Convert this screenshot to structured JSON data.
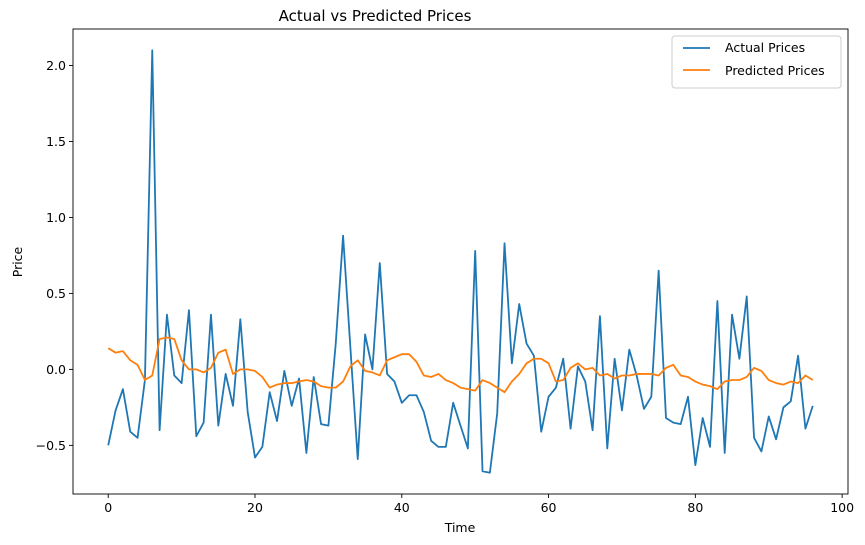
{
  "chart_data": {
    "type": "line",
    "title": "Actual vs Predicted Prices",
    "xlabel": "Time",
    "ylabel": "Price",
    "xlim": [
      -4.8,
      100.8
    ],
    "ylim": [
      -0.82,
      2.24
    ],
    "xticks": [
      0,
      20,
      40,
      60,
      80,
      100
    ],
    "yticks": [
      -0.5,
      0.0,
      0.5,
      1.0,
      1.5,
      2.0
    ],
    "ytick_labels": [
      "−0.5",
      "0.0",
      "0.5",
      "1.0",
      "1.5",
      "2.0"
    ],
    "grid": false,
    "legend_position": "top-right",
    "series": [
      {
        "name": "Actual Prices",
        "color": "#1f77b4",
        "values": [
          -0.5,
          -0.27,
          -0.13,
          -0.41,
          -0.45,
          -0.07,
          2.1,
          -0.4,
          0.36,
          -0.04,
          -0.09,
          0.39,
          -0.44,
          -0.35,
          0.36,
          -0.37,
          -0.03,
          -0.24,
          0.33,
          -0.28,
          -0.58,
          -0.51,
          -0.15,
          -0.34,
          -0.01,
          -0.24,
          -0.06,
          -0.55,
          -0.05,
          -0.36,
          -0.37,
          0.17,
          0.88,
          0.14,
          -0.59,
          0.23,
          0.0,
          0.7,
          -0.03,
          -0.08,
          -0.22,
          -0.17,
          -0.17,
          -0.28,
          -0.47,
          -0.51,
          -0.51,
          -0.22,
          -0.37,
          -0.52,
          0.78,
          -0.67,
          -0.68,
          -0.29,
          0.83,
          0.04,
          0.43,
          0.17,
          0.09,
          -0.41,
          -0.18,
          -0.12,
          0.07,
          -0.39,
          0.02,
          -0.08,
          -0.4,
          0.35,
          -0.52,
          0.07,
          -0.27,
          0.13,
          -0.04,
          -0.26,
          -0.18,
          0.65,
          -0.32,
          -0.35,
          -0.36,
          -0.18,
          -0.63,
          -0.32,
          -0.51,
          0.45,
          -0.55,
          0.36,
          0.07,
          0.48,
          -0.45,
          -0.54,
          -0.31,
          -0.46,
          -0.25,
          -0.21,
          0.09,
          -0.39,
          -0.24
        ]
      },
      {
        "name": "Predicted Prices",
        "color": "#ff7f0e",
        "values": [
          0.14,
          0.11,
          0.12,
          0.06,
          0.03,
          -0.07,
          -0.04,
          0.2,
          0.21,
          0.2,
          0.06,
          0.0,
          0.0,
          -0.02,
          0.01,
          0.11,
          0.13,
          -0.03,
          0.0,
          0.0,
          -0.01,
          -0.05,
          -0.12,
          -0.1,
          -0.09,
          -0.09,
          -0.08,
          -0.07,
          -0.08,
          -0.11,
          -0.12,
          -0.12,
          -0.08,
          0.02,
          0.06,
          -0.01,
          -0.02,
          -0.04,
          0.06,
          0.08,
          0.1,
          0.1,
          0.05,
          -0.04,
          -0.05,
          -0.03,
          -0.07,
          -0.09,
          -0.12,
          -0.13,
          -0.14,
          -0.07,
          -0.09,
          -0.12,
          -0.15,
          -0.08,
          -0.03,
          0.04,
          0.07,
          0.07,
          0.04,
          -0.08,
          -0.07,
          0.01,
          0.04,
          0.0,
          0.01,
          -0.04,
          -0.03,
          -0.06,
          -0.04,
          -0.04,
          -0.03,
          -0.03,
          -0.03,
          -0.04,
          0.01,
          0.03,
          -0.04,
          -0.05,
          -0.08,
          -0.1,
          -0.11,
          -0.13,
          -0.08,
          -0.07,
          -0.07,
          -0.05,
          0.01,
          -0.01,
          -0.07,
          -0.09,
          -0.1,
          -0.08,
          -0.09,
          -0.04,
          -0.07
        ]
      }
    ]
  }
}
